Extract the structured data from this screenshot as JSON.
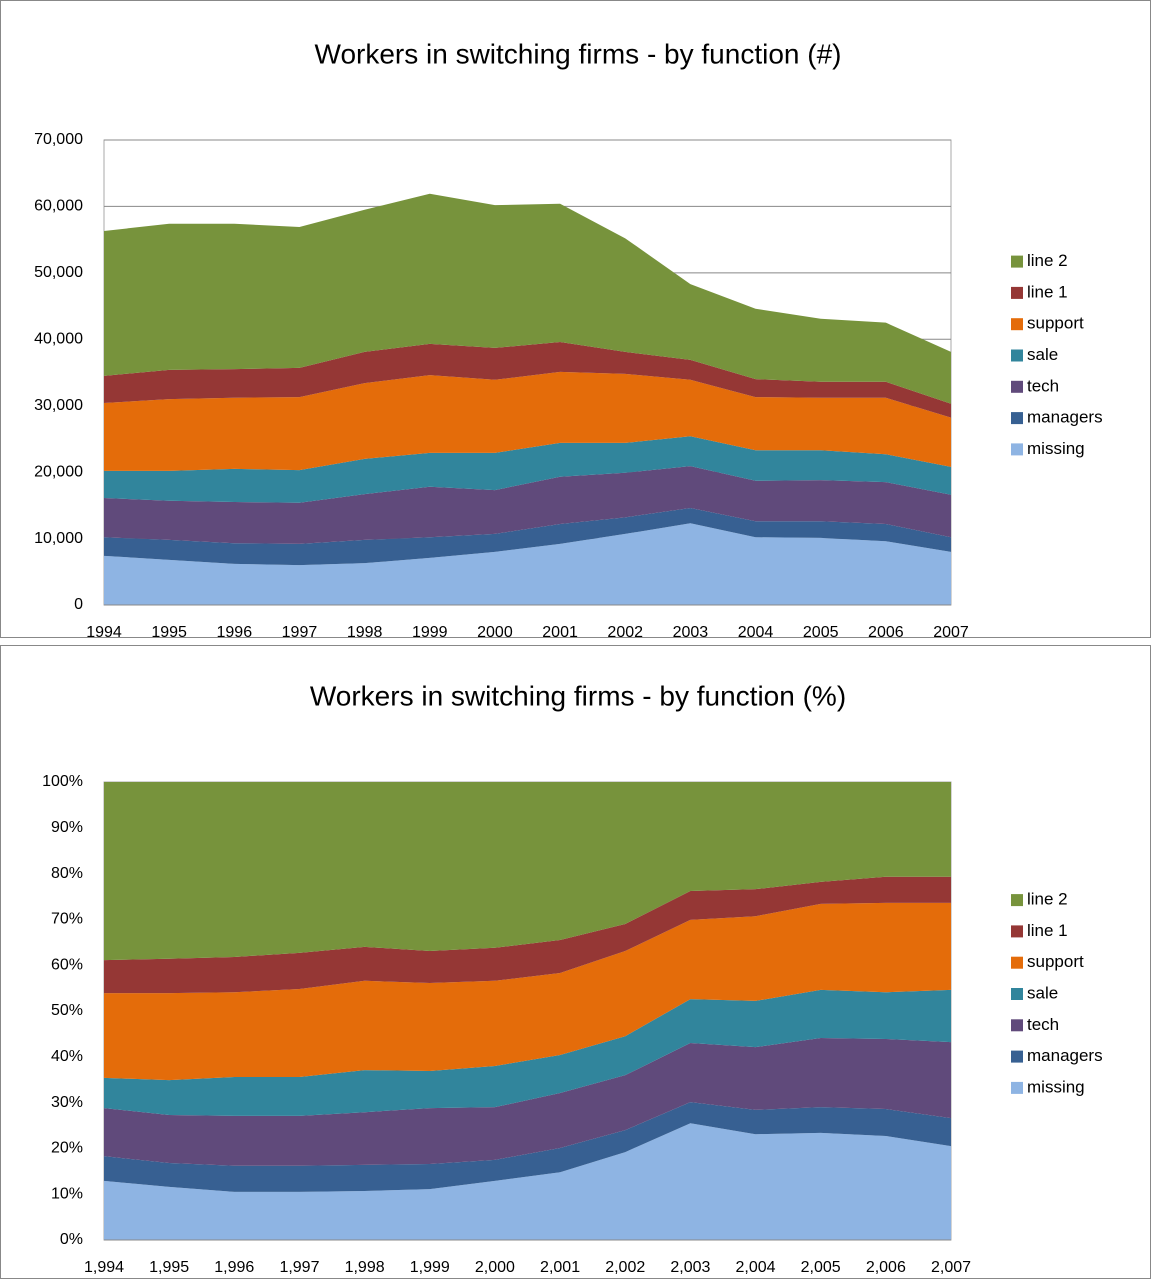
{
  "chart_data": [
    {
      "type": "stacked_area",
      "title": "Workers in switching firms - by function (#)",
      "categories": [
        "1994",
        "1995",
        "1996",
        "1997",
        "1998",
        "1999",
        "2000",
        "2001",
        "2002",
        "2003",
        "2004",
        "2005",
        "2006",
        "2007"
      ],
      "series": [
        {
          "name": "missing",
          "color": "#8eb4e3",
          "values": [
            7400,
            6800,
            6200,
            6000,
            6300,
            7100,
            8000,
            9200,
            10700,
            12300,
            10200,
            10100,
            9600,
            8000
          ]
        },
        {
          "name": "managers",
          "color": "#376092",
          "values": [
            2800,
            3000,
            3100,
            3200,
            3500,
            3100,
            2700,
            3000,
            2500,
            2300,
            2400,
            2500,
            2600,
            2200
          ]
        },
        {
          "name": "tech",
          "color": "#604a7b",
          "values": [
            5900,
            5900,
            6200,
            6200,
            6900,
            7600,
            6600,
            7100,
            6700,
            6300,
            6100,
            6200,
            6300,
            6400
          ]
        },
        {
          "name": "sale",
          "color": "#31859c",
          "values": [
            4100,
            4500,
            5000,
            4900,
            5300,
            5100,
            5600,
            5100,
            4500,
            4500,
            4600,
            4500,
            4200,
            4200
          ]
        },
        {
          "name": "support",
          "color": "#e46c0a",
          "values": [
            10200,
            10800,
            10700,
            11000,
            11400,
            11700,
            11000,
            10700,
            10400,
            8500,
            8000,
            7900,
            8500,
            7400
          ]
        },
        {
          "name": "line 1",
          "color": "#953735",
          "values": [
            4100,
            4400,
            4300,
            4400,
            4700,
            4700,
            4800,
            4500,
            3300,
            3000,
            2700,
            2400,
            2400,
            2100
          ]
        },
        {
          "name": "line 2",
          "color": "#77933c",
          "values": [
            21800,
            22000,
            21900,
            21200,
            21400,
            22600,
            21500,
            20800,
            17100,
            11400,
            10600,
            9500,
            8900,
            7800
          ]
        }
      ],
      "ylim": [
        0,
        70000
      ],
      "yticks": [
        0,
        {
          "value": 10000,
          "label": "10,000"
        },
        {
          "value": 20000,
          "label": "20,000"
        },
        {
          "value": 30000,
          "label": "30,000"
        },
        {
          "value": 40000,
          "label": "40,000"
        },
        {
          "value": 50000,
          "label": "50,000"
        },
        {
          "value": 60000,
          "label": "60,000"
        },
        {
          "value": 70000,
          "label": "70,000"
        }
      ],
      "grid": true,
      "legend_position": "right"
    },
    {
      "type": "stacked_area",
      "title": "Workers in switching firms - by function (%)",
      "categories": [
        "1,994",
        "1,995",
        "1,996",
        "1,997",
        "1,998",
        "1,999",
        "2,000",
        "2,001",
        "2,002",
        "2,003",
        "2,004",
        "2,005",
        "2,006",
        "2,007"
      ],
      "series": [
        {
          "name": "missing",
          "color": "#8eb4e3",
          "values": [
            12.9,
            11.6,
            10.5,
            10.5,
            10.7,
            11.1,
            12.9,
            14.8,
            19.2,
            25.5,
            23.1,
            23.4,
            22.7,
            20.5
          ]
        },
        {
          "name": "managers",
          "color": "#376092",
          "values": [
            5.4,
            5.2,
            5.7,
            5.7,
            5.7,
            5.5,
            4.6,
            5.3,
            4.8,
            4.6,
            5.3,
            5.6,
            5.9,
            6.1
          ]
        },
        {
          "name": "tech",
          "color": "#604a7b",
          "values": [
            10.5,
            10.5,
            10.9,
            10.9,
            11.5,
            12.2,
            11.5,
            12.0,
            12.0,
            12.9,
            13.7,
            15.1,
            15.3,
            16.6
          ]
        },
        {
          "name": "sale",
          "color": "#31859c",
          "values": [
            6.6,
            7.6,
            8.5,
            8.5,
            9.2,
            8.1,
            9.0,
            8.3,
            8.5,
            9.6,
            10.1,
            10.5,
            10.2,
            11.4
          ]
        },
        {
          "name": "support",
          "color": "#e46c0a",
          "values": [
            18.5,
            19.0,
            18.5,
            19.2,
            19.5,
            19.2,
            18.6,
            17.9,
            18.6,
            17.3,
            18.5,
            18.8,
            19.5,
            19.0
          ]
        },
        {
          "name": "line 1",
          "color": "#953735",
          "values": [
            7.2,
            7.5,
            7.7,
            7.9,
            7.4,
            7.0,
            7.2,
            7.2,
            5.9,
            6.3,
            5.9,
            4.8,
            5.7,
            5.7
          ]
        },
        {
          "name": "line 2",
          "color": "#77933c",
          "values": [
            38.9,
            38.6,
            38.2,
            37.3,
            36.0,
            36.9,
            36.2,
            34.5,
            31.0,
            23.8,
            23.4,
            21.8,
            20.7,
            20.7
          ]
        }
      ],
      "ylim": [
        0,
        100
      ],
      "yticks": [
        {
          "value": 0,
          "label": "0%"
        },
        {
          "value": 10,
          "label": "10%"
        },
        {
          "value": 20,
          "label": "20%"
        },
        {
          "value": 30,
          "label": "30%"
        },
        {
          "value": 40,
          "label": "40%"
        },
        {
          "value": 50,
          "label": "50%"
        },
        {
          "value": 60,
          "label": "60%"
        },
        {
          "value": 70,
          "label": "70%"
        },
        {
          "value": 80,
          "label": "80%"
        },
        {
          "value": 90,
          "label": "90%"
        },
        {
          "value": 100,
          "label": "100%"
        }
      ],
      "grid": false,
      "legend_position": "right"
    }
  ]
}
